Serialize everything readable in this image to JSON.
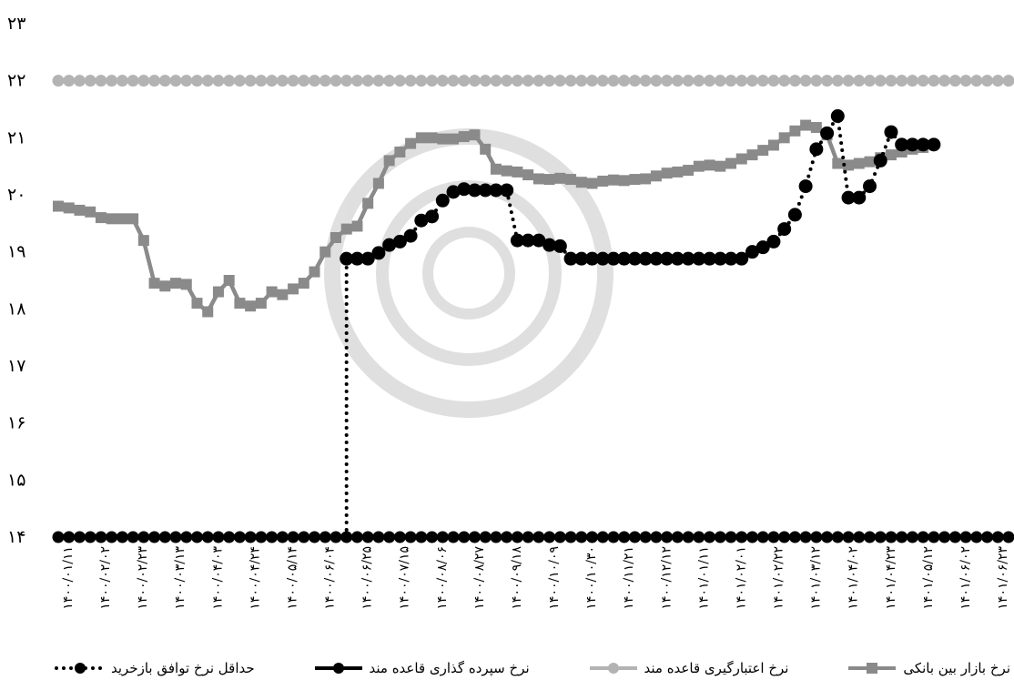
{
  "chart_data": {
    "type": "line",
    "ylim": [
      14,
      23
    ],
    "y_ticks": [
      "۱۴",
      "۱۵",
      "۱۶",
      "۱۷",
      "۱۸",
      "۱۹",
      "۲۰",
      "۲۱",
      "۲۲",
      "۲۳"
    ],
    "x_labels": [
      "۱۴۰۰/۰۱/۱۱",
      "۱۴۰۰/۰۲/۰۲",
      "۱۴۰۰/۰۲/۲۳",
      "۱۴۰۰/۰۳/۱۳",
      "۱۴۰۰/۰۴/۰۳",
      "۱۴۰۰/۰۴/۲۴",
      "۱۴۰۰/۰۵/۱۴",
      "۱۴۰۰/۰۶/۰۴",
      "۱۴۰۰/۰۶/۲۵",
      "۱۴۰۰/۰۷/۱۵",
      "۱۴۰۰/۰۸/۰۶",
      "۱۴۰۰/۰۸/۲۷",
      "۱۴۰۰/۰۹/۱۸",
      "۱۴۰۰/۱۰/۰۹",
      "۱۴۰۰/۱۰/۳۰",
      "۱۴۰۰/۱۱/۲۱",
      "۱۴۰۰/۱۲/۱۲",
      "۱۴۰۱/۰۱/۱۱",
      "۱۴۰۱/۰۲/۰۱",
      "۱۴۰۱/۰۲/۲۲",
      "۱۴۰۱/۰۳/۱۲",
      "۱۴۰۱/۰۴/۰۲",
      "۱۴۰۱/۰۴/۲۳",
      "۱۴۰۱/۰۵/۱۲",
      "۱۴۰۱/۰۶/۰۲",
      "۱۴۰۱/۰۶/۲۳"
    ],
    "n_points": 90,
    "grid": false,
    "legend_position": "bottom",
    "series": [
      {
        "name": "نرخ بازار بین بانکی",
        "color": "#8a8a8a",
        "marker": "square",
        "style": "solid",
        "values": [
          19.8,
          19.77,
          19.73,
          19.7,
          19.6,
          19.58,
          19.58,
          19.58,
          19.2,
          18.45,
          18.4,
          18.45,
          18.43,
          18.1,
          17.95,
          18.3,
          18.5,
          18.1,
          18.05,
          18.1,
          18.3,
          18.25,
          18.35,
          18.45,
          18.65,
          19.0,
          19.25,
          19.4,
          19.45,
          19.85,
          20.2,
          20.6,
          20.75,
          20.9,
          21.0,
          21.0,
          20.98,
          20.98,
          21.02,
          21.05,
          20.8,
          20.45,
          20.42,
          20.4,
          20.35,
          20.28,
          20.27,
          20.29,
          20.27,
          20.22,
          20.2,
          20.24,
          20.26,
          20.25,
          20.27,
          20.28,
          20.33,
          20.38,
          20.4,
          20.43,
          20.5,
          20.52,
          20.5,
          20.55,
          20.63,
          20.7,
          20.78,
          20.87,
          21.0,
          21.12,
          21.22,
          21.18,
          21.05,
          20.55,
          20.52,
          20.55,
          20.58,
          20.65,
          20.7,
          20.75,
          20.8,
          20.83
        ]
      },
      {
        "name": "نرخ اعتبارگیری قاعده مند",
        "color": "#b3b3b3",
        "marker": "circle",
        "style": "solid",
        "values": [
          22,
          22,
          22,
          22,
          22,
          22,
          22,
          22,
          22,
          22,
          22,
          22,
          22,
          22,
          22,
          22,
          22,
          22,
          22,
          22,
          22,
          22,
          22,
          22,
          22,
          22,
          22,
          22,
          22,
          22,
          22,
          22,
          22,
          22,
          22,
          22,
          22,
          22,
          22,
          22,
          22,
          22,
          22,
          22,
          22,
          22,
          22,
          22,
          22,
          22,
          22,
          22,
          22,
          22,
          22,
          22,
          22,
          22,
          22,
          22,
          22,
          22,
          22,
          22,
          22,
          22,
          22,
          22,
          22,
          22,
          22,
          22,
          22,
          22,
          22,
          22,
          22,
          22,
          22,
          22,
          22,
          22,
          22,
          22,
          22,
          22,
          22,
          22,
          22,
          22
        ]
      },
      {
        "name": "نرخ سپرده گذاری قاعده مند",
        "color": "#000000",
        "marker": "circle",
        "style": "solid",
        "values": [
          14,
          14,
          14,
          14,
          14,
          14,
          14,
          14,
          14,
          14,
          14,
          14,
          14,
          14,
          14,
          14,
          14,
          14,
          14,
          14,
          14,
          14,
          14,
          14,
          14,
          14,
          14,
          14,
          14,
          14,
          14,
          14,
          14,
          14,
          14,
          14,
          14,
          14,
          14,
          14,
          14,
          14,
          14,
          14,
          14,
          14,
          14,
          14,
          14,
          14,
          14,
          14,
          14,
          14,
          14,
          14,
          14,
          14,
          14,
          14,
          14,
          14,
          14,
          14,
          14,
          14,
          14,
          14,
          14,
          14,
          14,
          14,
          14,
          14,
          14,
          14,
          14,
          14,
          14,
          14,
          14,
          14,
          14,
          14,
          14,
          14,
          14,
          14,
          14,
          14
        ]
      },
      {
        "name": "حداقل نرخ توافق بازخرید",
        "color": "#000000",
        "marker": "circle",
        "style": "dotted",
        "start_index": 27,
        "start_value": 14,
        "values": [
          18.88,
          18.88,
          18.88,
          18.98,
          19.12,
          19.18,
          19.28,
          19.55,
          19.62,
          19.9,
          20.05,
          20.1,
          20.08,
          20.08,
          20.08,
          20.08,
          19.2,
          19.2,
          19.2,
          19.12,
          19.1,
          18.88,
          18.88,
          18.88,
          18.88,
          18.88,
          18.88,
          18.88,
          18.88,
          18.88,
          18.88,
          18.88,
          18.88,
          18.88,
          18.88,
          18.88,
          18.88,
          18.88,
          19.0,
          19.08,
          19.18,
          19.4,
          19.65,
          20.15,
          20.8,
          21.08,
          21.38,
          19.95,
          19.95,
          20.15,
          20.6,
          21.1,
          20.88,
          20.88,
          20.88,
          20.88
        ]
      }
    ]
  }
}
